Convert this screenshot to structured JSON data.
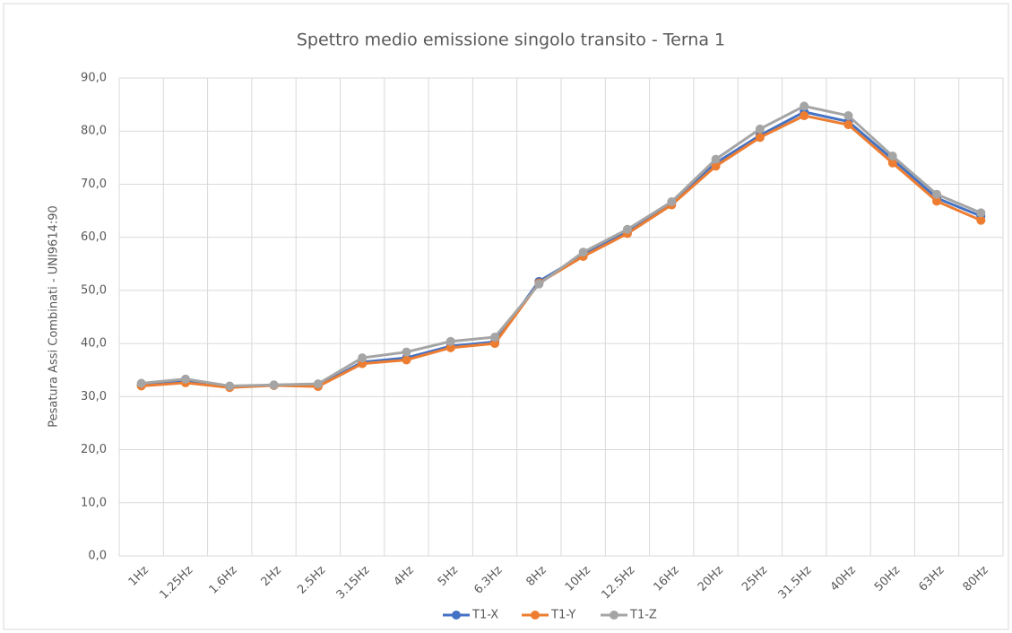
{
  "chart_data": {
    "type": "line",
    "title": "Spettro medio emissione singolo transito - Terna 1",
    "y_label": "Pesatura Assi Combinati - UNI9614:90",
    "categories": [
      "1Hz",
      "1.25Hz",
      "1.6Hz",
      "2Hz",
      "2.5Hz",
      "3.15Hz",
      "4Hz",
      "5Hz",
      "6.3Hz",
      "8Hz",
      "10Hz",
      "12.5Hz",
      "16Hz",
      "20Hz",
      "25Hz",
      "31.5Hz",
      "40Hz",
      "50Hz",
      "63Hz",
      "80Hz"
    ],
    "series": [
      {
        "name": "T1-X",
        "color": "#4472c4",
        "values": [
          32.2,
          32.8,
          31.9,
          32.1,
          32.0,
          36.5,
          37.3,
          39.5,
          40.3,
          51.7,
          56.7,
          61.0,
          66.3,
          74.0,
          79.2,
          83.6,
          81.8,
          74.7,
          67.4,
          64.0
        ]
      },
      {
        "name": "T1-Y",
        "color": "#ed7d31",
        "values": [
          32.0,
          32.6,
          31.7,
          32.1,
          31.9,
          36.2,
          36.9,
          39.2,
          40.0,
          51.4,
          56.4,
          60.7,
          66.1,
          73.4,
          78.8,
          82.9,
          81.2,
          74.0,
          66.8,
          63.2
        ]
      },
      {
        "name": "T1-Z",
        "color": "#a5a5a5",
        "values": [
          32.5,
          33.3,
          32.0,
          32.2,
          32.4,
          37.3,
          38.4,
          40.4,
          41.2,
          51.2,
          57.2,
          61.5,
          66.7,
          74.7,
          80.4,
          84.7,
          82.9,
          75.3,
          68.1,
          64.6
        ]
      }
    ],
    "ylim": [
      0,
      90
    ],
    "yticks": [
      {
        "value": 0,
        "label": "0,0"
      },
      {
        "value": 10,
        "label": "10,0"
      },
      {
        "value": 20,
        "label": "20,0"
      },
      {
        "value": 30,
        "label": "30,0"
      },
      {
        "value": 40,
        "label": "40,0"
      },
      {
        "value": 50,
        "label": "50,0"
      },
      {
        "value": 60,
        "label": "60,0"
      },
      {
        "value": 70,
        "label": "70,0"
      },
      {
        "value": 80,
        "label": "80,0"
      },
      {
        "value": 90,
        "label": "90,0"
      }
    ],
    "grid": true,
    "legend": "bottom"
  }
}
